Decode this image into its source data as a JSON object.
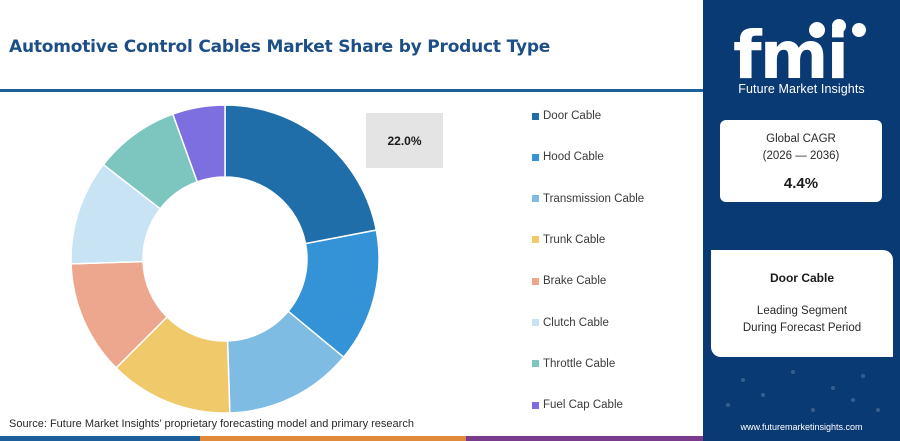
{
  "title": "Automotive Control Cables Market Share by Product Type",
  "chart_data": {
    "type": "pie",
    "donut": true,
    "categories": [
      "Door Cable",
      "Hood Cable",
      "Transmission Cable",
      "Trunk Cable",
      "Brake Cable",
      "Clutch Cable",
      "Throttle Cable",
      "Fuel Cap Cable"
    ],
    "values": [
      22.0,
      14.0,
      13.5,
      13.0,
      12.0,
      11.0,
      9.0,
      5.5
    ],
    "colors": [
      "#1f6ea9",
      "#3393d6",
      "#7fbce3",
      "#efc96a",
      "#eca78e",
      "#c8e3f3",
      "#7dc5bf",
      "#7d6fe0"
    ],
    "callout_label": "22.0%",
    "legend_position": "right"
  },
  "source": "Source: Future Market Insights’ proprietary forecasting model and primary research",
  "panel": {
    "logo_text": "fmi",
    "brand": "Future Market Insights",
    "cagr_label_line1": "Global CAGR",
    "cagr_label_line2": "(2026 — 2036)",
    "cagr_value": "4.4%",
    "segment_name": "Door Cable",
    "segment_line1": "Leading Segment",
    "segment_line2": "During Forecast Period",
    "url": "www.futuremarketinsights.com"
  },
  "colors": {
    "title": "#1d4f86",
    "panel": "#0a3a74",
    "accent_orange": "#e08a3c",
    "accent_purple": "#7b3b8c"
  }
}
